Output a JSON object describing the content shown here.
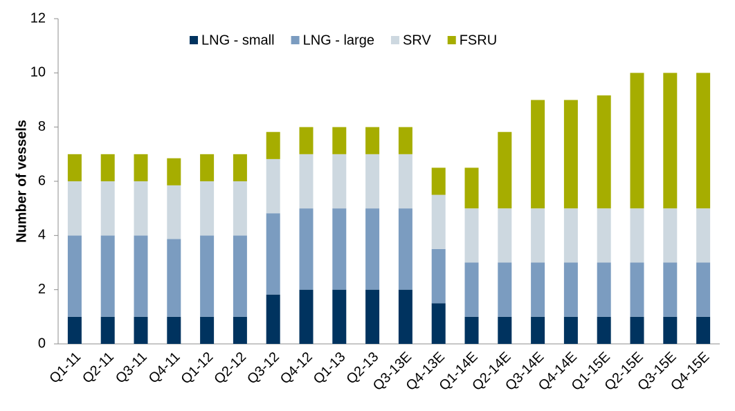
{
  "chart_data": {
    "type": "stacked_bar",
    "y_label": "Number of vessels",
    "categories": [
      "Q1-11",
      "Q2-11",
      "Q3-11",
      "Q4-11",
      "Q1-12",
      "Q2-12",
      "Q3-12",
      "Q4-12",
      "Q1-13",
      "Q2-13",
      "Q3-13E",
      "Q4-13E",
      "Q1-14E",
      "Q2-14E",
      "Q3-14E",
      "Q4-14E",
      "Q1-15E",
      "Q2-15E",
      "Q3-15E",
      "Q4-15E"
    ],
    "series": [
      {
        "name": "LNG - small",
        "color": "#00335f",
        "values": [
          1,
          1,
          1,
          1,
          1,
          1,
          1.82,
          2,
          2,
          2,
          2,
          1.5,
          1,
          1,
          1,
          1,
          1,
          1,
          1,
          1
        ]
      },
      {
        "name": "LNG - large",
        "color": "#7b9cc0",
        "values": [
          3,
          3,
          3,
          2.87,
          3,
          3,
          3,
          3,
          3,
          3,
          3,
          2,
          2,
          2,
          2,
          2,
          2,
          2,
          2,
          2
        ]
      },
      {
        "name": "SRV",
        "color": "#cdd8e0",
        "values": [
          2,
          2,
          2,
          1.98,
          2,
          2,
          2,
          2,
          2,
          2,
          2,
          2,
          2,
          2,
          2,
          2,
          2,
          2,
          2,
          2
        ]
      },
      {
        "name": "FSRU",
        "color": "#a6ad00",
        "values": [
          1,
          1,
          1,
          1,
          1,
          1,
          1,
          1,
          1,
          1,
          1,
          1,
          1.5,
          2.82,
          4,
          4,
          4.17,
          5,
          5,
          5
        ]
      }
    ],
    "ylim": [
      0,
      12
    ],
    "yticks": [
      0,
      2,
      4,
      6,
      8,
      10,
      12
    ],
    "grid": false,
    "legend": "top"
  }
}
